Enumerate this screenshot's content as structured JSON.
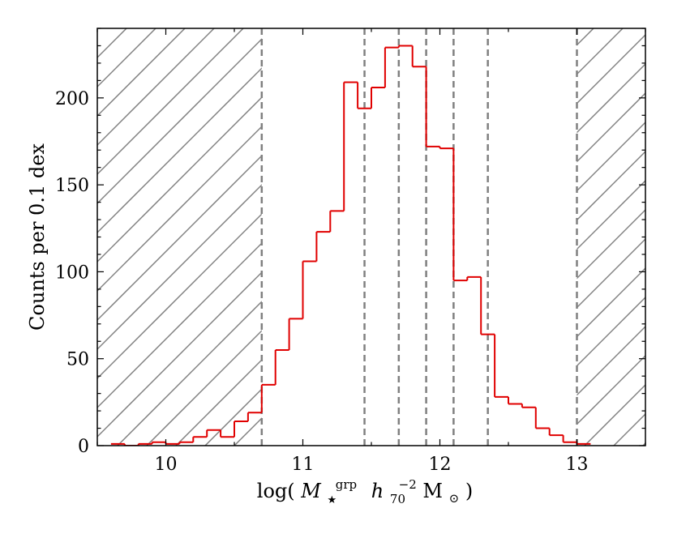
{
  "chart_data": {
    "type": "bar",
    "histogram_style": "step",
    "bin_width": 0.1,
    "bin_edges_start": 9.6,
    "bin_values": [
      1,
      0,
      1,
      2,
      1,
      2,
      5,
      9,
      5,
      14,
      19,
      35,
      55,
      73,
      106,
      123,
      135,
      209,
      194,
      206,
      229,
      230,
      218,
      172,
      171,
      95,
      97,
      64,
      28,
      24,
      22,
      10,
      6,
      2,
      1
    ],
    "series": [
      {
        "color": "#e00000"
      }
    ],
    "xlabel": "log(M★grp h70−2 M⊙)",
    "xlabel_parts": {
      "pre": "log(",
      "M": "M",
      "sub": "★",
      "sup": "grp",
      "h": "h",
      "hsub": "70",
      "hsup": "−2",
      "unit": "M",
      "unitsub": "⊙",
      "post": ")"
    },
    "ylabel": "Counts per 0.1 dex",
    "xlim": [
      9.5,
      13.5
    ],
    "ylim": [
      0,
      240
    ],
    "xticks": [
      10,
      11,
      12,
      13
    ],
    "yticks": [
      0,
      50,
      100,
      150,
      200
    ],
    "xtick_labels": [
      "10",
      "11",
      "12",
      "13"
    ],
    "ytick_labels": [
      "0",
      "50",
      "100",
      "150",
      "200"
    ],
    "vlines": [
      10.7,
      11.45,
      11.7,
      11.9,
      12.1,
      12.35,
      13.0
    ],
    "vline_color": "#808080",
    "hatched_regions": [
      [
        9.5,
        10.7
      ],
      [
        13.0,
        13.5
      ]
    ],
    "hatch_color": "#808080",
    "grid": false
  }
}
